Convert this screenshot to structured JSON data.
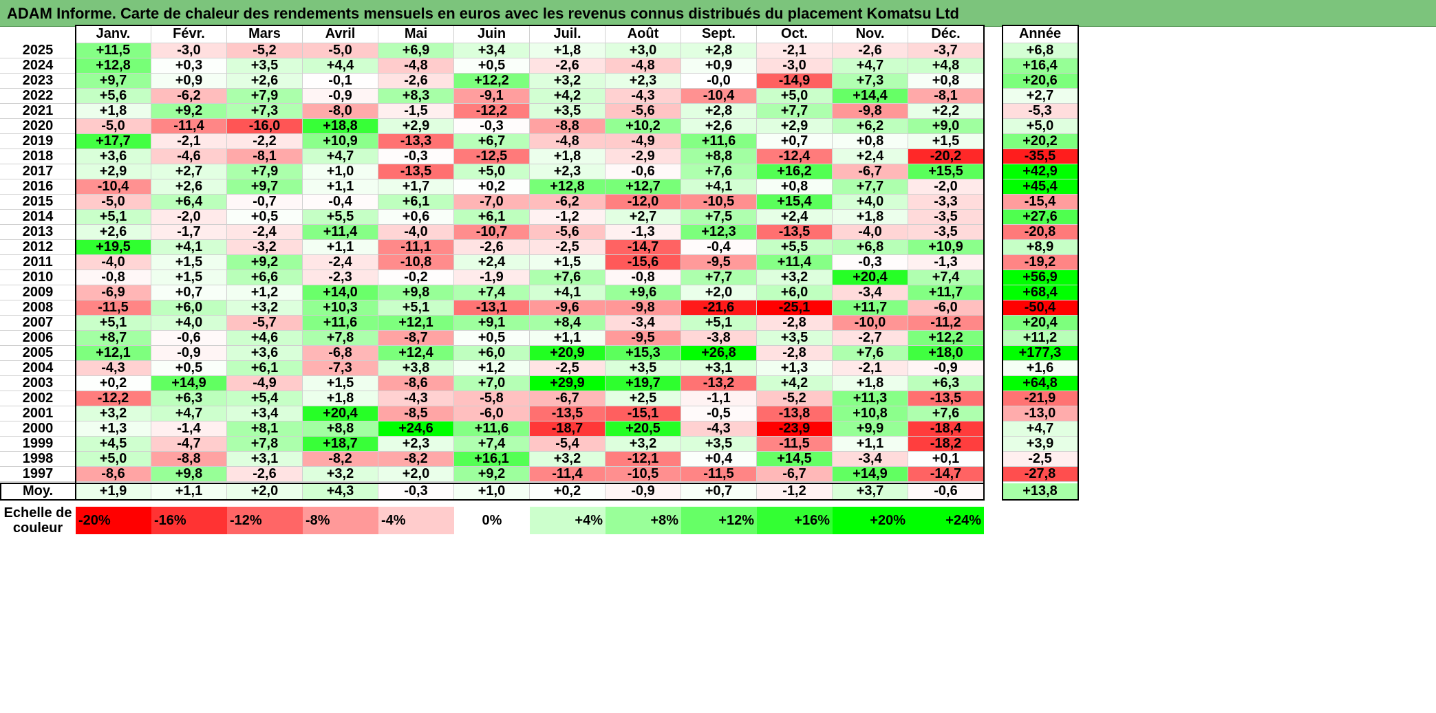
{
  "title": "ADAM Informe. Carte de chaleur des rendements mensuels en euros avec les revenus connus distribués du placement Komatsu Ltd",
  "colors": {
    "title_bar": "#7cc47c",
    "max_red": "#ff0000",
    "max_green": "#00ff00",
    "neutral": "#ffffff"
  },
  "chart_data": {
    "type": "heatmap",
    "title": "ADAM Informe. Carte de chaleur des rendements mensuels en euros avec les revenus connus distribués du placement Komatsu Ltd",
    "months": [
      "Janv.",
      "Févr.",
      "Mars",
      "Avril",
      "Mai",
      "Juin",
      "Juil.",
      "Août",
      "Sept.",
      "Oct.",
      "Nov.",
      "Déc."
    ],
    "annual_label": "Année",
    "rows": [
      {
        "year": "2025",
        "values": [
          "+11,5",
          "-3,0",
          "-5,2",
          "-5,0",
          "+6,9",
          "+3,4",
          "+1,8",
          "+3,0",
          "+2,8",
          "-2,1",
          "-2,6",
          "-3,7"
        ],
        "annual": "+6,8"
      },
      {
        "year": "2024",
        "values": [
          "+12,8",
          "+0,3",
          "+3,5",
          "+4,4",
          "-4,8",
          "+0,5",
          "-2,6",
          "-4,8",
          "+0,9",
          "-3,0",
          "+4,7",
          "+4,8"
        ],
        "annual": "+16,4"
      },
      {
        "year": "2023",
        "values": [
          "+9,7",
          "+0,9",
          "+2,6",
          "-0,1",
          "-2,6",
          "+12,2",
          "+3,2",
          "+2,3",
          "-0,0",
          "-14,9",
          "+7,3",
          "+0,8"
        ],
        "annual": "+20,6"
      },
      {
        "year": "2022",
        "values": [
          "+5,6",
          "-6,2",
          "+7,9",
          "-0,9",
          "+8,3",
          "-9,1",
          "+4,2",
          "-4,3",
          "-10,4",
          "+5,0",
          "+14,4",
          "-8,1"
        ],
        "annual": "+2,7"
      },
      {
        "year": "2021",
        "values": [
          "+1,8",
          "+9,2",
          "+7,3",
          "-8,0",
          "-1,5",
          "-12,2",
          "+3,5",
          "-5,6",
          "+2,8",
          "+7,7",
          "-9,8",
          "+2,2"
        ],
        "annual": "-5,3"
      },
      {
        "year": "2020",
        "values": [
          "-5,0",
          "-11,4",
          "-16,0",
          "+18,8",
          "+2,9",
          "-0,3",
          "-8,8",
          "+10,2",
          "+2,6",
          "+2,9",
          "+6,2",
          "+9,0"
        ],
        "annual": "+5,0"
      },
      {
        "year": "2019",
        "values": [
          "+17,7",
          "-2,1",
          "-2,2",
          "+10,9",
          "-13,3",
          "+6,7",
          "-4,8",
          "-4,9",
          "+11,6",
          "+0,7",
          "+0,8",
          "+1,5"
        ],
        "annual": "+20,2"
      },
      {
        "year": "2018",
        "values": [
          "+3,6",
          "-4,6",
          "-8,1",
          "+4,7",
          "-0,3",
          "-12,5",
          "+1,8",
          "-2,9",
          "+8,8",
          "-12,4",
          "+2,4",
          "-20,2"
        ],
        "annual": "-35,5"
      },
      {
        "year": "2017",
        "values": [
          "+2,9",
          "+2,7",
          "+7,9",
          "+1,0",
          "-13,5",
          "+5,0",
          "+2,3",
          "-0,6",
          "+7,6",
          "+16,2",
          "-6,7",
          "+15,5"
        ],
        "annual": "+42,9"
      },
      {
        "year": "2016",
        "values": [
          "-10,4",
          "+2,6",
          "+9,7",
          "+1,1",
          "+1,7",
          "+0,2",
          "+12,8",
          "+12,7",
          "+4,1",
          "+0,8",
          "+7,7",
          "-2,0"
        ],
        "annual": "+45,4"
      },
      {
        "year": "2015",
        "values": [
          "-5,0",
          "+6,4",
          "-0,7",
          "-0,4",
          "+6,1",
          "-7,0",
          "-6,2",
          "-12,0",
          "-10,5",
          "+15,4",
          "+4,0",
          "-3,3"
        ],
        "annual": "-15,4"
      },
      {
        "year": "2014",
        "values": [
          "+5,1",
          "-2,0",
          "+0,5",
          "+5,5",
          "+0,6",
          "+6,1",
          "-1,2",
          "+2,7",
          "+7,5",
          "+2,4",
          "+1,8",
          "-3,5"
        ],
        "annual": "+27,6"
      },
      {
        "year": "2013",
        "values": [
          "+2,6",
          "-1,7",
          "-2,4",
          "+11,4",
          "-4,0",
          "-10,7",
          "-5,6",
          "-1,3",
          "+12,3",
          "-13,5",
          "-4,0",
          "-3,5"
        ],
        "annual": "-20,8"
      },
      {
        "year": "2012",
        "values": [
          "+19,5",
          "+4,1",
          "-3,2",
          "+1,1",
          "-11,1",
          "-2,6",
          "-2,5",
          "-14,7",
          "-0,4",
          "+5,5",
          "+6,8",
          "+10,9"
        ],
        "annual": "+8,9"
      },
      {
        "year": "2011",
        "values": [
          "-4,0",
          "+1,5",
          "+9,2",
          "-2,4",
          "-10,8",
          "+2,4",
          "+1,5",
          "-15,6",
          "-9,5",
          "+11,4",
          "-0,3",
          "-1,3"
        ],
        "annual": "-19,2"
      },
      {
        "year": "2010",
        "values": [
          "-0,8",
          "+1,5",
          "+6,6",
          "-2,3",
          "-0,2",
          "-1,9",
          "+7,6",
          "-0,8",
          "+7,7",
          "+3,2",
          "+20,4",
          "+7,4"
        ],
        "annual": "+56,9"
      },
      {
        "year": "2009",
        "values": [
          "-6,9",
          "+0,7",
          "+1,2",
          "+14,0",
          "+9,8",
          "+7,4",
          "+4,1",
          "+9,6",
          "+2,0",
          "+6,0",
          "-3,4",
          "+11,7"
        ],
        "annual": "+68,4"
      },
      {
        "year": "2008",
        "values": [
          "-11,5",
          "+6,0",
          "+3,2",
          "+10,3",
          "+5,1",
          "-13,1",
          "-9,6",
          "-9,8",
          "-21,6",
          "-25,1",
          "+11,7",
          "-6,0"
        ],
        "annual": "-50,4"
      },
      {
        "year": "2007",
        "values": [
          "+5,1",
          "+4,0",
          "-5,7",
          "+11,6",
          "+12,1",
          "+9,1",
          "+8,4",
          "-3,4",
          "+5,1",
          "-2,8",
          "-10,0",
          "-11,2"
        ],
        "annual": "+20,4"
      },
      {
        "year": "2006",
        "values": [
          "+8,7",
          "-0,6",
          "+4,6",
          "+7,8",
          "-8,7",
          "+0,5",
          "+1,1",
          "-9,5",
          "-3,8",
          "+3,5",
          "-2,7",
          "+12,2"
        ],
        "annual": "+11,2"
      },
      {
        "year": "2005",
        "values": [
          "+12,1",
          "-0,9",
          "+3,6",
          "-6,8",
          "+12,4",
          "+6,0",
          "+20,9",
          "+15,3",
          "+26,8",
          "-2,8",
          "+7,6",
          "+18,0"
        ],
        "annual": "+177,3"
      },
      {
        "year": "2004",
        "values": [
          "-4,3",
          "+0,5",
          "+6,1",
          "-7,3",
          "+3,8",
          "+1,2",
          "-2,5",
          "+3,5",
          "+3,1",
          "+1,3",
          "-2,1",
          "-0,9"
        ],
        "annual": "+1,6"
      },
      {
        "year": "2003",
        "values": [
          "+0,2",
          "+14,9",
          "-4,9",
          "+1,5",
          "-8,6",
          "+7,0",
          "+29,9",
          "+19,7",
          "-13,2",
          "+4,2",
          "+1,8",
          "+6,3"
        ],
        "annual": "+64,8"
      },
      {
        "year": "2002",
        "values": [
          "-12,2",
          "+6,3",
          "+5,4",
          "+1,8",
          "-4,3",
          "-5,8",
          "-6,7",
          "+2,5",
          "-1,1",
          "-5,2",
          "+11,3",
          "-13,5"
        ],
        "annual": "-21,9"
      },
      {
        "year": "2001",
        "values": [
          "+3,2",
          "+4,7",
          "+3,4",
          "+20,4",
          "-8,5",
          "-6,0",
          "-13,5",
          "-15,1",
          "-0,5",
          "-13,8",
          "+10,8",
          "+7,6"
        ],
        "annual": "-13,0"
      },
      {
        "year": "2000",
        "values": [
          "+1,3",
          "-1,4",
          "+8,1",
          "+8,8",
          "+24,6",
          "+11,6",
          "-18,7",
          "+20,5",
          "-4,3",
          "-23,9",
          "+9,9",
          "-18,4"
        ],
        "annual": "+4,7"
      },
      {
        "year": "1999",
        "values": [
          "+4,5",
          "-4,7",
          "+7,8",
          "+18,7",
          "+2,3",
          "+7,4",
          "-5,4",
          "+3,2",
          "+3,5",
          "-11,5",
          "+1,1",
          "-18,2"
        ],
        "annual": "+3,9"
      },
      {
        "year": "1998",
        "values": [
          "+5,0",
          "-8,8",
          "+3,1",
          "-8,2",
          "-8,2",
          "+16,1",
          "+3,2",
          "-12,1",
          "+0,4",
          "+14,5",
          "-3,4",
          "+0,1"
        ],
        "annual": "-2,5"
      },
      {
        "year": "1997",
        "values": [
          "-8,6",
          "+9,8",
          "-2,6",
          "+3,2",
          "+2,0",
          "+9,2",
          "-11,4",
          "-10,5",
          "-11,5",
          "-6,7",
          "+14,9",
          "-14,7"
        ],
        "annual": "-27,8"
      }
    ],
    "average": {
      "label": "Moy.",
      "values": [
        "+1,9",
        "+1,1",
        "+2,0",
        "+4,3",
        "-0,3",
        "+1,0",
        "+0,2",
        "-0,9",
        "+0,7",
        "-1,2",
        "+3,7",
        "-0,6"
      ],
      "annual": "+13,8"
    },
    "scale": {
      "label": "Echelle de couleur",
      "stops": [
        {
          "label": "-20%",
          "value": -20
        },
        {
          "label": "-16%",
          "value": -16
        },
        {
          "label": "-12%",
          "value": -12
        },
        {
          "label": "-8%",
          "value": -8
        },
        {
          "label": "-4%",
          "value": -4
        },
        {
          "label": "0%",
          "value": 0
        },
        {
          "label": "+4%",
          "value": 4
        },
        {
          "label": "+8%",
          "value": 8
        },
        {
          "label": "+12%",
          "value": 12
        },
        {
          "label": "+16%",
          "value": 16
        },
        {
          "label": "+20%",
          "value": 20
        },
        {
          "label": "+24%",
          "value": 24
        }
      ]
    }
  }
}
